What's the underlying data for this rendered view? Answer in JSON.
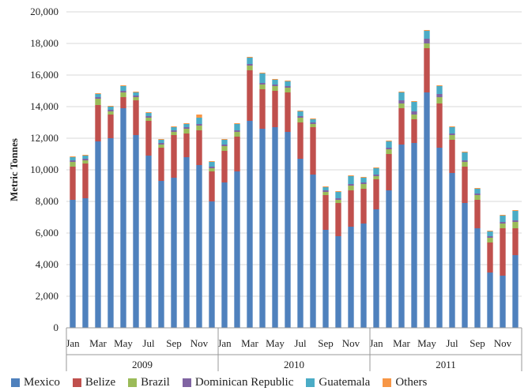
{
  "chart_data": {
    "type": "bar",
    "stacked": true,
    "title": "",
    "xlabel": "",
    "ylabel": "Metric Tonnes",
    "ylim": [
      0,
      20000
    ],
    "yticks": [
      "0",
      "2,000",
      "4,000",
      "6,000",
      "8,000",
      "10,000",
      "12,000",
      "14,000",
      "16,000",
      "18,000",
      "20,000"
    ],
    "month_labels": [
      "Jan",
      "Mar",
      "May",
      "Jul",
      "Sep",
      "Nov",
      "Jan",
      "Mar",
      "May",
      "Jul",
      "Sep",
      "Nov",
      "Jan",
      "Mar",
      "May",
      "Jul",
      "Sep",
      "Nov"
    ],
    "years": [
      "2009",
      "2010",
      "2011"
    ],
    "categories": [
      "Jan 2009",
      "Feb 2009",
      "Mar 2009",
      "Apr 2009",
      "May 2009",
      "Jun 2009",
      "Jul 2009",
      "Aug 2009",
      "Sep 2009",
      "Oct 2009",
      "Nov 2009",
      "Dec 2009",
      "Jan 2010",
      "Feb 2010",
      "Mar 2010",
      "Apr 2010",
      "May 2010",
      "Jun 2010",
      "Jul 2010",
      "Aug 2010",
      "Sep 2010",
      "Oct 2010",
      "Nov 2010",
      "Dec 2010",
      "Jan 2011",
      "Feb 2011",
      "Mar 2011",
      "Apr 2011",
      "May 2011",
      "Jun 2011",
      "Jul 2011",
      "Aug 2011",
      "Sep 2011",
      "Oct 2011",
      "Nov 2011",
      "Dec 2011"
    ],
    "series": [
      {
        "name": "Mexico",
        "color": "#4F81BD",
        "values": [
          8100,
          8200,
          11800,
          12000,
          13900,
          12200,
          10900,
          9300,
          9500,
          10800,
          10300,
          8000,
          9200,
          9900,
          13100,
          12600,
          12700,
          12400,
          10700,
          9700,
          6200,
          5800,
          6400,
          6600,
          7500,
          8700,
          11600,
          11700,
          14900,
          11400,
          9800,
          7900,
          6300,
          3500,
          3300,
          4600
        ]
      },
      {
        "name": "Belize",
        "color": "#C0504D",
        "values": [
          2100,
          2200,
          2300,
          1500,
          700,
          2200,
          2200,
          2100,
          2700,
          1500,
          2200,
          1900,
          2000,
          2200,
          3200,
          2500,
          2300,
          2500,
          2300,
          3000,
          2200,
          2100,
          2300,
          2200,
          1900,
          2300,
          2300,
          1500,
          2800,
          2800,
          2100,
          2300,
          1800,
          1900,
          3000,
          1700
        ]
      },
      {
        "name": "Brazil",
        "color": "#9BBB59",
        "values": [
          300,
          200,
          400,
          200,
          300,
          200,
          200,
          200,
          200,
          300,
          300,
          200,
          300,
          300,
          300,
          300,
          300,
          300,
          300,
          200,
          200,
          200,
          300,
          300,
          200,
          300,
          300,
          300,
          300,
          400,
          300,
          300,
          300,
          300,
          300,
          400
        ]
      },
      {
        "name": "Dominican Republic",
        "color": "#8064A2",
        "values": [
          100,
          100,
          100,
          100,
          100,
          100,
          100,
          100,
          100,
          100,
          100,
          100,
          100,
          100,
          100,
          100,
          100,
          100,
          100,
          100,
          100,
          100,
          100,
          100,
          100,
          100,
          200,
          200,
          300,
          200,
          100,
          100,
          100,
          100,
          100,
          100
        ]
      },
      {
        "name": "Guatemala",
        "color": "#4BACC6",
        "values": [
          200,
          200,
          200,
          200,
          300,
          200,
          200,
          200,
          200,
          200,
          400,
          300,
          300,
          400,
          400,
          600,
          300,
          300,
          300,
          200,
          200,
          400,
          500,
          300,
          400,
          400,
          500,
          600,
          500,
          500,
          400,
          500,
          300,
          300,
          400,
          600
        ]
      },
      {
        "name": "Others",
        "color": "#F79646",
        "values": [
          50,
          50,
          50,
          50,
          50,
          50,
          50,
          50,
          50,
          50,
          200,
          50,
          50,
          50,
          50,
          50,
          50,
          50,
          50,
          50,
          50,
          50,
          50,
          50,
          50,
          50,
          50,
          50,
          50,
          50,
          50,
          50,
          50,
          50,
          50,
          50
        ]
      }
    ],
    "grid": true,
    "legend_position": "bottom"
  }
}
